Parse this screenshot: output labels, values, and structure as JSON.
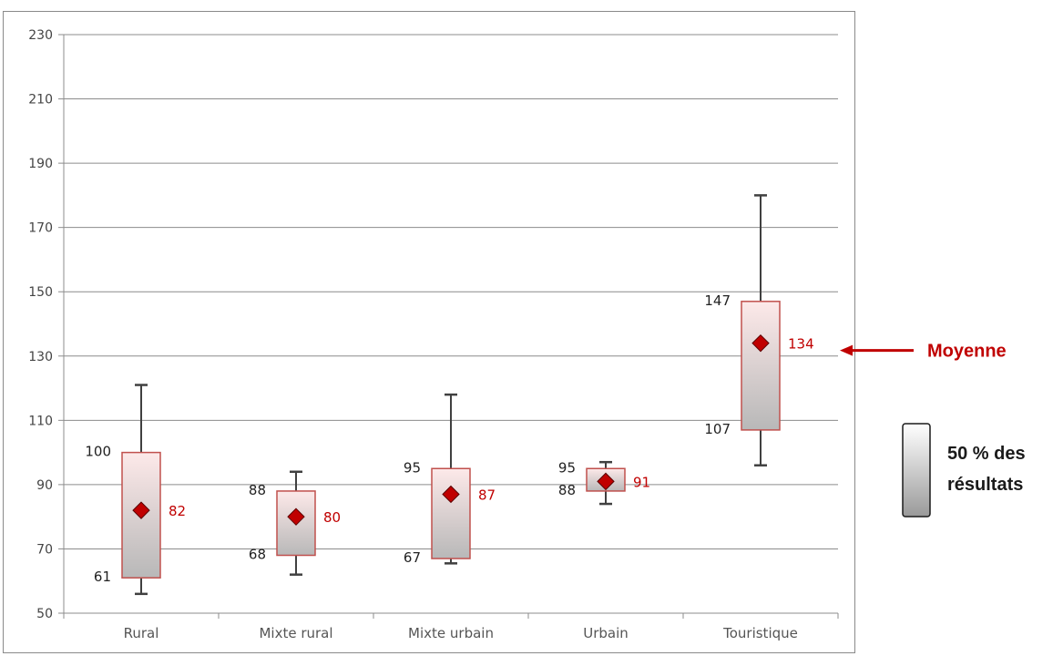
{
  "chart_data": {
    "type": "box",
    "title": "",
    "xlabel": "",
    "ylabel": "",
    "ylim": [
      50,
      230
    ],
    "yticks": [
      "230",
      "210",
      "190",
      "170",
      "150",
      "130",
      "110",
      "90",
      "70",
      "50"
    ],
    "grid": true,
    "categories": [
      "Rural",
      "Mixte rural",
      "Mixte urbain",
      "Urbain",
      "Touristique"
    ],
    "boxes": [
      {
        "min": 56,
        "q1": 61,
        "q3": 100,
        "max": 121,
        "mean": 82,
        "q1_label": "61",
        "q3_label": "100",
        "mean_label": "82"
      },
      {
        "min": 62,
        "q1": 68,
        "q3": 88,
        "max": 94,
        "mean": 80,
        "q1_label": "68",
        "q3_label": "88",
        "mean_label": "80"
      },
      {
        "min": 65.5,
        "q1": 67,
        "q3": 95,
        "max": 118,
        "mean": 87,
        "q1_label": "67",
        "q3_label": "95",
        "mean_label": "87"
      },
      {
        "min": 84,
        "q1": 88,
        "q3": 95,
        "max": 97,
        "mean": 91,
        "q1_label": "88",
        "q3_label": "95",
        "mean_label": "91"
      },
      {
        "min": 96,
        "q1": 107,
        "q3": 147,
        "max": 180,
        "mean": 134,
        "q1_label": "107",
        "q3_label": "147",
        "mean_label": "134"
      }
    ],
    "annotation": {
      "text": "Moyenne",
      "target_box": 4
    },
    "legend": {
      "line1": "50 % des",
      "line2": "résultats",
      "placement": "right"
    },
    "colors": {
      "box_border": "#c0504d",
      "box_fill_top": "#fde9e9",
      "box_fill_bottom": "#b8b8b8",
      "mean_marker": "#c00000",
      "mean_label": "#c00000",
      "whisker": "#404040",
      "grid": "#8c8c8c"
    }
  }
}
